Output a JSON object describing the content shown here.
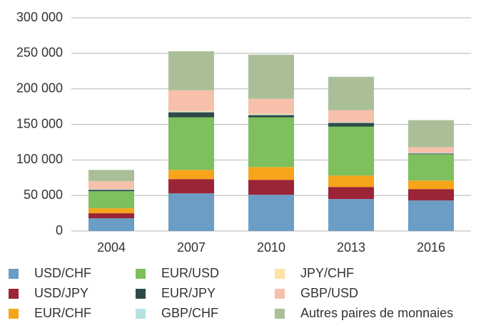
{
  "chart_data": {
    "type": "stacked_bar",
    "categories": [
      "2004",
      "2007",
      "2010",
      "2013",
      "2016"
    ],
    "series": [
      {
        "name": "USD/CHF",
        "color": "#6b9dc5",
        "values": [
          18000,
          53000,
          51000,
          45000,
          43000
        ]
      },
      {
        "name": "USD/JPY",
        "color": "#9b2437",
        "values": [
          7000,
          20000,
          21000,
          17000,
          16000
        ]
      },
      {
        "name": "EUR/CHF",
        "color": "#f6a51b",
        "values": [
          7000,
          13000,
          18000,
          16000,
          12000
        ]
      },
      {
        "name": "EUR/USD",
        "color": "#7ebf5e",
        "values": [
          24000,
          74000,
          70000,
          69000,
          37000
        ]
      },
      {
        "name": "EUR/JPY",
        "color": "#2e4a47",
        "values": [
          2000,
          7000,
          3000,
          5000,
          1000
        ]
      },
      {
        "name": "GBP/CHF",
        "color": "#b5e1e1",
        "values": [
          1000,
          1000,
          1000,
          1000,
          1000
        ]
      },
      {
        "name": "JPY/CHF",
        "color": "#fde2a1",
        "values": [
          0,
          1000,
          1000,
          0,
          0
        ]
      },
      {
        "name": "GBP/USD",
        "color": "#f7c0ab",
        "values": [
          11000,
          29000,
          21000,
          17000,
          8000
        ]
      },
      {
        "name": "Autres paires de monnaies",
        "color": "#aabf98",
        "values": [
          16000,
          55000,
          62000,
          47000,
          38000
        ]
      }
    ],
    "ylim": [
      0,
      300000
    ],
    "yticks": [
      0,
      {
        "value": 50000,
        "label": "50 000"
      },
      {
        "value": 100000,
        "label": "100 000"
      },
      {
        "value": 150000,
        "label": "150 000"
      },
      {
        "value": 200000,
        "label": "200 000"
      },
      {
        "value": 250000,
        "label": "250 000"
      },
      {
        "value": 300000,
        "label": "300 000"
      }
    ],
    "grid": true,
    "legend": "bottom"
  }
}
